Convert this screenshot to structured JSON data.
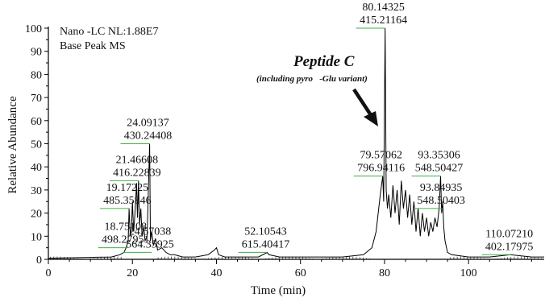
{
  "chart_data": {
    "type": "line",
    "title": "",
    "inset_lines": [
      "Nano -LC NL:1.88E7",
      "Base Peak MS"
    ],
    "xlabel": "Time (min)",
    "ylabel": "Relative Abundance",
    "xlim": [
      0,
      118
    ],
    "ylim": [
      0,
      100
    ],
    "xticks": [
      0,
      20,
      40,
      60,
      80,
      100
    ],
    "yticks": [
      0,
      10,
      20,
      30,
      40,
      50,
      60,
      70,
      80,
      90,
      100
    ],
    "series": [
      {
        "x": [
          0,
          15,
          17,
          18,
          18.5,
          19,
          19.2,
          19.5,
          19.8,
          20,
          20.3,
          20.6,
          21,
          21.2,
          21.46,
          21.7,
          22,
          22.3,
          22.7,
          23,
          23.5,
          24.09,
          24.3,
          24.6,
          25,
          25.5,
          26,
          27,
          28,
          29,
          30,
          32,
          35,
          38,
          39.5,
          40,
          40.5,
          42,
          45,
          48,
          50,
          52.1,
          52.5,
          55,
          60,
          65,
          70,
          75,
          77,
          78,
          78.5,
          79,
          79.57,
          79.8,
          80.14,
          80.4,
          80.7,
          81,
          81.5,
          82,
          82.5,
          83,
          83.5,
          84,
          84.5,
          85,
          85.5,
          86,
          86.5,
          87,
          87.5,
          88,
          88.5,
          89,
          89.5,
          90,
          90.5,
          91,
          91.5,
          92,
          92.5,
          93,
          93.35,
          93.6,
          93.85,
          94.1,
          94.4,
          95,
          96,
          100,
          105,
          110.07,
          115,
          118
        ],
        "y": [
          0.5,
          1,
          2,
          3,
          5,
          8,
          22,
          10,
          14,
          25,
          12,
          20,
          33,
          18,
          34,
          15,
          22,
          10,
          14,
          8,
          10,
          50,
          8,
          12,
          6,
          9,
          4,
          5,
          3,
          2,
          2,
          1,
          1,
          2,
          4,
          5,
          2,
          1,
          1,
          1,
          1,
          3,
          2,
          1,
          1,
          1,
          1,
          2,
          5,
          12,
          20,
          28,
          36,
          25,
          100,
          30,
          22,
          28,
          18,
          32,
          20,
          30,
          15,
          34,
          22,
          30,
          18,
          28,
          15,
          25,
          12,
          22,
          10,
          20,
          12,
          18,
          10,
          16,
          12,
          18,
          14,
          22,
          36,
          20,
          25,
          14,
          8,
          3,
          2,
          1,
          1,
          2,
          1,
          1
        ],
        "color": "#000000"
      }
    ],
    "annotations": [
      {
        "x": 80.14,
        "y": 100,
        "lines": [
          "80.14325",
          "415.21164"
        ]
      },
      {
        "x": 24.09,
        "y": 50,
        "lines": [
          "24.09137",
          "430.24408"
        ]
      },
      {
        "x": 21.46,
        "y": 34,
        "lines": [
          "21.46608",
          "416.22839"
        ]
      },
      {
        "x": 19.17,
        "y": 22,
        "lines": [
          "19.17225",
          "485.35846"
        ]
      },
      {
        "x": 18.75,
        "y": 5,
        "lines": [
          "18.75108",
          "498.27951"
        ]
      },
      {
        "x": 24.57,
        "y": 3,
        "lines": [
          "24.57038",
          "564.35925"
        ]
      },
      {
        "x": 52.1,
        "y": 3,
        "lines": [
          "52.10543",
          "615.40417"
        ]
      },
      {
        "x": 79.57,
        "y": 36,
        "lines": [
          "79.57062",
          "796.94116"
        ]
      },
      {
        "x": 93.35,
        "y": 36,
        "lines": [
          "93.35306",
          "548.50427"
        ]
      },
      {
        "x": 93.85,
        "y": 22,
        "lines": [
          "93.84935",
          "548.50403"
        ]
      },
      {
        "x": 110.07,
        "y": 2,
        "lines": [
          "110.07210",
          "402.17975"
        ]
      }
    ],
    "callout": {
      "title": "Peptide C",
      "subtitle": "(including pyro   -Glu variant)"
    },
    "grid": false,
    "legend": "none"
  },
  "colors": {
    "trace": "#000000",
    "leader": "#3cb043",
    "axis": "#000000"
  }
}
